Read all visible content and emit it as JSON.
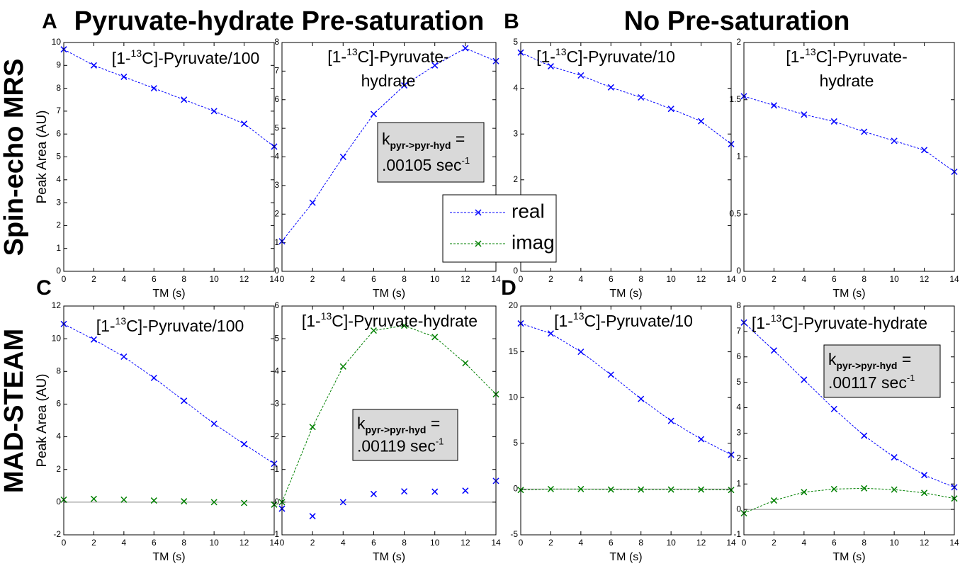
{
  "labels": [
    "A",
    "B",
    "C",
    "D"
  ],
  "headers": [
    "Pyruvate-hydrate Pre-saturation",
    "No Pre-saturation"
  ],
  "row_labels": [
    "Spin-echo MRS",
    "MAD-STEAM"
  ],
  "chart_data": [
    {
      "type": "line",
      "title": [
        [
          "[1-",
          "13",
          "C]-Pyruvate/100"
        ]
      ],
      "xlabel": "TM (s)",
      "ylabel": "Peak Area (AU)",
      "x": [
        0,
        2,
        4,
        6,
        8,
        10,
        12,
        14
      ],
      "xlim": [
        0,
        14
      ],
      "xticks": [
        0,
        2,
        4,
        6,
        8,
        10,
        12,
        14
      ],
      "ylim": [
        0,
        10
      ],
      "yticks": [
        0,
        1,
        2,
        3,
        4,
        5,
        6,
        7,
        8,
        9,
        10
      ],
      "series": [
        {
          "color": "#0000ff",
          "linestyle": "dashed",
          "values": [
            9.7,
            9.0,
            8.5,
            8.0,
            7.5,
            7.0,
            6.45,
            5.45
          ]
        }
      ]
    },
    {
      "type": "line",
      "title": [
        [
          "[1-",
          "13",
          "C]-Pyruvate-"
        ],
        [
          "hydrate"
        ]
      ],
      "xlabel": "TM (s)",
      "annotation": [
        "k",
        "pyr->pyr-hyd",
        " =",
        ".00105 sec",
        "-1"
      ],
      "x": [
        0,
        2,
        4,
        6,
        8,
        10,
        12,
        14
      ],
      "xlim": [
        0,
        14
      ],
      "xticks": [
        0,
        2,
        4,
        6,
        8,
        10,
        12,
        14
      ],
      "ylim": [
        0,
        8
      ],
      "yticks": [
        0,
        1,
        2,
        3,
        4,
        5,
        6,
        7,
        8
      ],
      "series": [
        {
          "color": "#0000ff",
          "linestyle": "dashed",
          "values": [
            1.05,
            2.4,
            4.0,
            5.5,
            6.5,
            7.2,
            7.8,
            7.35
          ]
        }
      ]
    },
    {
      "type": "line",
      "title": [
        [
          "[1-",
          "13",
          "C]-Pyruvate/10"
        ]
      ],
      "xlabel": "TM (s)",
      "x": [
        0,
        2,
        4,
        6,
        8,
        10,
        12,
        14
      ],
      "xlim": [
        0,
        14
      ],
      "xticks": [
        0,
        2,
        4,
        6,
        8,
        10,
        12,
        14
      ],
      "ylim": [
        0,
        5
      ],
      "yticks": [
        0,
        1,
        2,
        3,
        4,
        5
      ],
      "series": [
        {
          "color": "#0000ff",
          "linestyle": "dashed",
          "values": [
            4.78,
            4.48,
            4.28,
            4.02,
            3.8,
            3.55,
            3.28,
            2.78
          ]
        }
      ]
    },
    {
      "type": "line",
      "title": [
        [
          "[1-",
          "13",
          "C]-Pyruvate-"
        ],
        [
          "hydrate"
        ]
      ],
      "xlabel": "TM (s)",
      "x": [
        0,
        2,
        4,
        6,
        8,
        10,
        12,
        14
      ],
      "xlim": [
        0,
        14
      ],
      "xticks": [
        0,
        2,
        4,
        6,
        8,
        10,
        12,
        14
      ],
      "ylim": [
        0,
        2
      ],
      "yticks": [
        0,
        0.5,
        1,
        1.5,
        2
      ],
      "series": [
        {
          "color": "#0000ff",
          "linestyle": "dashed",
          "values": [
            1.53,
            1.45,
            1.37,
            1.31,
            1.22,
            1.14,
            1.06,
            0.87
          ]
        }
      ]
    },
    {
      "type": "line",
      "title": [
        [
          "[1-",
          "13",
          "C]-Pyruvate/100"
        ]
      ],
      "xlabel": "TM (s)",
      "ylabel": "Peak Area (AU)",
      "zeroline": true,
      "x": [
        0,
        2,
        4,
        6,
        8,
        10,
        12,
        14
      ],
      "xlim": [
        0,
        14
      ],
      "xticks": [
        0,
        2,
        4,
        6,
        8,
        10,
        12,
        14
      ],
      "ylim": [
        -2,
        12
      ],
      "yticks": [
        -2,
        0,
        2,
        4,
        6,
        8,
        10,
        12
      ],
      "series": [
        {
          "color": "#0000ff",
          "linestyle": "dashed",
          "values": [
            10.9,
            9.95,
            8.9,
            7.6,
            6.2,
            4.8,
            3.55,
            2.35
          ]
        },
        {
          "color": "#008000",
          "linestyle": "none",
          "values": [
            0.15,
            0.2,
            0.15,
            0.1,
            0.05,
            0.0,
            -0.05,
            -0.15
          ]
        }
      ]
    },
    {
      "type": "line",
      "title": [
        [
          "[1-",
          "13",
          "C]-Pyruvate-hydrate"
        ]
      ],
      "xlabel": "TM (s)",
      "zeroline": true,
      "annotation": [
        "k",
        "pyr->pyr-hyd",
        " =",
        ".00119 sec",
        "-1"
      ],
      "x": [
        0,
        2,
        4,
        6,
        8,
        10,
        12,
        14
      ],
      "xlim": [
        0,
        14
      ],
      "xticks": [
        0,
        2,
        4,
        6,
        8,
        10,
        12,
        14
      ],
      "ylim": [
        -1,
        6
      ],
      "yticks": [
        -1,
        0,
        1,
        2,
        3,
        4,
        5,
        6
      ],
      "series": [
        {
          "name": "real",
          "color": "#0000ff",
          "linestyle": "none",
          "values": [
            -0.2,
            -0.43,
            0.0,
            0.25,
            0.33,
            0.32,
            0.35,
            0.65
          ]
        },
        {
          "name": "imag",
          "color": "#008000",
          "linestyle": "dashed",
          "values": [
            0.0,
            2.3,
            4.15,
            5.25,
            5.4,
            5.05,
            4.25,
            3.3
          ]
        }
      ]
    },
    {
      "type": "line",
      "title": [
        [
          "[1-",
          "13",
          "C]-Pyruvate/10"
        ]
      ],
      "xlabel": "TM (s)",
      "zeroline": true,
      "x": [
        0,
        2,
        4,
        6,
        8,
        10,
        12,
        14
      ],
      "xlim": [
        0,
        14
      ],
      "xticks": [
        0,
        2,
        4,
        6,
        8,
        10,
        12,
        14
      ],
      "ylim": [
        -5,
        20
      ],
      "yticks": [
        -5,
        0,
        5,
        10,
        15,
        20
      ],
      "series": [
        {
          "color": "#0000ff",
          "linestyle": "dashed",
          "values": [
            18.1,
            17.0,
            15.0,
            12.5,
            9.85,
            7.45,
            5.45,
            3.75
          ]
        },
        {
          "color": "#008000",
          "linestyle": "dashed",
          "values": [
            -0.1,
            0.0,
            0.0,
            -0.05,
            -0.05,
            -0.05,
            -0.05,
            -0.1
          ]
        }
      ]
    },
    {
      "type": "line",
      "title": [
        [
          "[1-",
          "13",
          "C]-Pyruvate-hydrate"
        ]
      ],
      "xlabel": "TM (s)",
      "zeroline": true,
      "annotation": [
        "k",
        "pyr->pyr-hyd",
        " =",
        ".00117 sec",
        "-1"
      ],
      "x": [
        0,
        2,
        4,
        6,
        8,
        10,
        12,
        14
      ],
      "xlim": [
        0,
        14
      ],
      "xticks": [
        0,
        2,
        4,
        6,
        8,
        10,
        12,
        14
      ],
      "ylim": [
        -1,
        8
      ],
      "yticks": [
        -1,
        0,
        1,
        2,
        3,
        4,
        5,
        6,
        7,
        8
      ],
      "series": [
        {
          "color": "#0000ff",
          "linestyle": "dashed",
          "values": [
            7.35,
            6.25,
            5.1,
            3.95,
            2.9,
            2.05,
            1.35,
            0.87
          ]
        },
        {
          "color": "#008000",
          "linestyle": "dashed",
          "values": [
            -0.15,
            0.35,
            0.68,
            0.8,
            0.83,
            0.78,
            0.65,
            0.43
          ]
        }
      ]
    }
  ]
}
